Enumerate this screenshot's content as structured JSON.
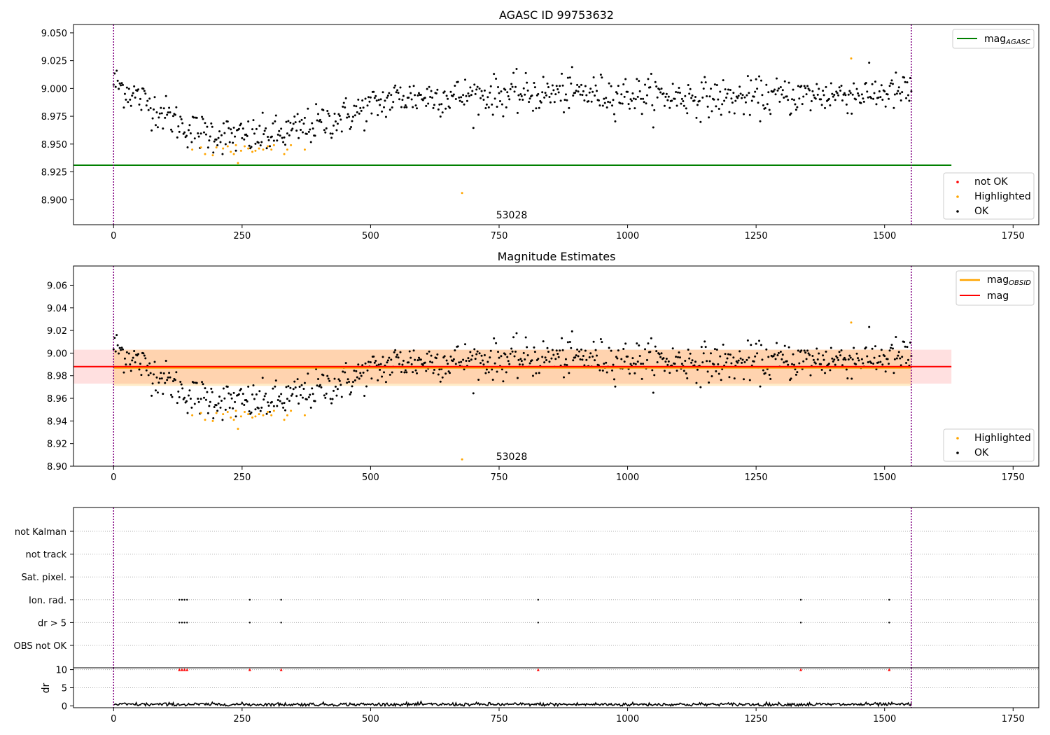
{
  "figure": {
    "top_title": "AGASC ID 99753632",
    "mid_title": "Magnitude Estimates",
    "obsid_label": "53028"
  },
  "legends": {
    "top_line": "mag",
    "top_line_sub": "AGASC",
    "top_points": [
      "not OK",
      "Highlighted",
      "OK"
    ],
    "mid_line1": "mag",
    "mid_line1_sub": "OBSID",
    "mid_line2": "mag",
    "mid_points": [
      "Highlighted",
      "OK"
    ]
  },
  "colors": {
    "ok": "#000000",
    "highlighted": "#ffa500",
    "not_ok": "#ff0000",
    "agasc_line": "#008000",
    "mag_line": "#ff0000",
    "obsid_line": "#ffa500",
    "obs_boundary": "#800080"
  },
  "chart_data": [
    {
      "type": "scatter",
      "title": "AGASC ID 99753632",
      "xlabel": "",
      "ylabel": "",
      "xlim": [
        -78,
        1800
      ],
      "ylim": [
        8.8775,
        9.0575
      ],
      "xticks": [
        0,
        250,
        500,
        750,
        1000,
        1250,
        1500,
        1750
      ],
      "yticks": [
        8.9,
        8.925,
        8.95,
        8.975,
        9.0,
        9.025,
        9.05
      ],
      "mag_agasc": 8.931,
      "obs_boundaries": [
        0,
        1552
      ],
      "obsid_annotation": {
        "text": "53028",
        "x": 776,
        "y": 8.884
      },
      "series": [
        {
          "name": "OK",
          "pattern": {
            "x_start": 0,
            "x_end": 1552,
            "step": 2,
            "trend": [
              [
                0,
                9.006
              ],
              [
                150,
                8.962
              ],
              [
                250,
                8.956
              ],
              [
                320,
                8.958
              ],
              [
                450,
                8.975
              ],
              [
                550,
                8.992
              ],
              [
                900,
                8.996
              ],
              [
                1200,
                8.991
              ],
              [
                1552,
                8.997
              ]
            ],
            "scatter": 0.012
          }
        },
        {
          "name": "Highlighted",
          "points": [
            [
              153,
              8.945
            ],
            [
              170,
              8.947
            ],
            [
              178,
              8.941
            ],
            [
              193,
              8.94
            ],
            [
              200,
              8.947
            ],
            [
              213,
              8.946
            ],
            [
              222,
              8.948
            ],
            [
              228,
              8.943
            ],
            [
              234,
              8.941
            ],
            [
              238,
              8.949
            ],
            [
              242,
              8.933
            ],
            [
              248,
              8.944
            ],
            [
              255,
              8.948
            ],
            [
              262,
              8.946
            ],
            [
              270,
              8.943
            ],
            [
              276,
              8.944
            ],
            [
              283,
              8.946
            ],
            [
              291,
              8.945
            ],
            [
              300,
              8.948
            ],
            [
              307,
              8.945
            ],
            [
              312,
              8.949
            ],
            [
              332,
              8.941
            ],
            [
              338,
              8.945
            ],
            [
              345,
              8.949
            ],
            [
              372,
              8.945
            ],
            [
              678,
              8.906
            ],
            [
              1435,
              9.027
            ]
          ]
        },
        {
          "name": "not OK",
          "points": []
        }
      ]
    },
    {
      "type": "scatter",
      "title": "Magnitude Estimates",
      "xlabel": "",
      "ylabel": "",
      "xlim": [
        -78,
        1800
      ],
      "ylim": [
        8.9,
        9.077
      ],
      "xticks": [
        0,
        250,
        500,
        750,
        1000,
        1250,
        1500,
        1750
      ],
      "yticks": [
        8.9,
        8.92,
        8.94,
        8.96,
        8.98,
        9.0,
        9.02,
        9.04,
        9.06
      ],
      "mag": 8.988,
      "mag_band": [
        8.973,
        9.003
      ],
      "mag_obsid": 8.987,
      "mag_obsid_band": [
        8.971,
        9.003
      ],
      "obs_boundaries": [
        0,
        1552
      ],
      "obsid_annotation": {
        "text": "53028",
        "x": 776,
        "y": 8.904
      },
      "series": [
        {
          "name": "OK",
          "same_as": "top"
        },
        {
          "name": "Highlighted",
          "same_as": "top"
        }
      ]
    },
    {
      "type": "scatter",
      "title": "",
      "xlabel": "",
      "ylabel": "",
      "xlim": [
        -78,
        1800
      ],
      "xticks": [
        0,
        250,
        500,
        750,
        1000,
        1250,
        1500,
        1750
      ],
      "flag_categories": [
        "not Kalman",
        "not track",
        "Sat. pixel.",
        "Ion. rad.",
        "dr > 5",
        "OBS not OK"
      ],
      "flags": {
        "Ion. rad.": [
          128,
          133,
          138,
          143,
          265,
          326,
          826,
          1337,
          1509
        ],
        "dr > 5": [
          128,
          133,
          138,
          143,
          265,
          326,
          826,
          1337,
          1509
        ]
      },
      "obs_boundaries": [
        0,
        1552
      ]
    },
    {
      "type": "line",
      "title": "",
      "xlabel": "",
      "ylabel": "dr",
      "xlim": [
        -78,
        1800
      ],
      "ylim": [
        -0.5,
        10.5
      ],
      "xticks": [
        0,
        250,
        500,
        750,
        1000,
        1250,
        1500,
        1750
      ],
      "yticks": [
        0,
        5,
        10
      ],
      "dr_typical": 0.4,
      "dr_scatter": 0.25,
      "dr_clipped_markers": [
        128,
        133,
        138,
        143,
        265,
        326,
        826,
        1337,
        1509
      ],
      "obs_boundaries": [
        0,
        1552
      ]
    }
  ]
}
